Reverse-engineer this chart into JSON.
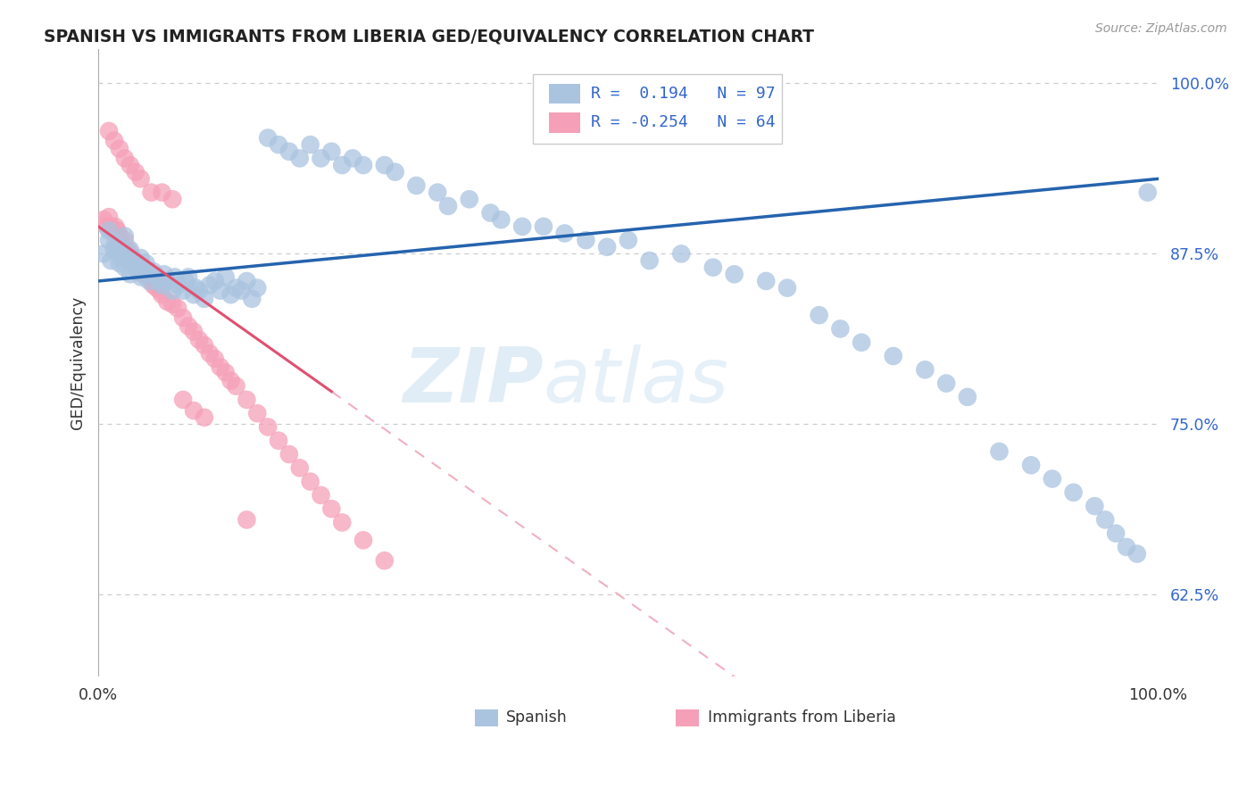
{
  "title": "SPANISH VS IMMIGRANTS FROM LIBERIA GED/EQUIVALENCY CORRELATION CHART",
  "source": "Source: ZipAtlas.com",
  "ylabel": "GED/Equivalency",
  "xlim": [
    0.0,
    1.0
  ],
  "ylim": [
    0.565,
    1.025
  ],
  "yticks": [
    0.625,
    0.75,
    0.875,
    1.0
  ],
  "ytick_labels": [
    "62.5%",
    "75.0%",
    "87.5%",
    "100.0%"
  ],
  "legend_r_blue": "0.194",
  "legend_n_blue": "97",
  "legend_r_pink": "-0.254",
  "legend_n_pink": "64",
  "blue_color": "#aac4e0",
  "pink_color": "#f5a0b8",
  "blue_line_color": "#2563ae",
  "pink_line_color": "#e05070",
  "pink_dash_color": "#f0b0c0",
  "tick_color": "#3366cc",
  "blue_regression": [
    0.855,
    0.075
  ],
  "pink_regression": [
    0.895,
    -0.55
  ],
  "blue_x": [
    0.005,
    0.01,
    0.01,
    0.012,
    0.015,
    0.016,
    0.018,
    0.02,
    0.02,
    0.022,
    0.025,
    0.025,
    0.028,
    0.03,
    0.03,
    0.032,
    0.035,
    0.038,
    0.04,
    0.04,
    0.042,
    0.045,
    0.048,
    0.05,
    0.052,
    0.055,
    0.058,
    0.06,
    0.062,
    0.065,
    0.07,
    0.072,
    0.075,
    0.08,
    0.082,
    0.085,
    0.09,
    0.092,
    0.095,
    0.1,
    0.105,
    0.11,
    0.115,
    0.12,
    0.125,
    0.13,
    0.135,
    0.14,
    0.145,
    0.15,
    0.16,
    0.17,
    0.18,
    0.19,
    0.2,
    0.21,
    0.22,
    0.23,
    0.24,
    0.25,
    0.27,
    0.28,
    0.3,
    0.32,
    0.33,
    0.35,
    0.37,
    0.38,
    0.4,
    0.42,
    0.44,
    0.46,
    0.48,
    0.5,
    0.52,
    0.55,
    0.58,
    0.6,
    0.63,
    0.65,
    0.68,
    0.7,
    0.72,
    0.75,
    0.78,
    0.8,
    0.82,
    0.85,
    0.88,
    0.9,
    0.92,
    0.94,
    0.95,
    0.96,
    0.97,
    0.98,
    0.99
  ],
  "blue_y": [
    0.875,
    0.885,
    0.892,
    0.87,
    0.878,
    0.882,
    0.876,
    0.868,
    0.88,
    0.872,
    0.865,
    0.888,
    0.875,
    0.86,
    0.878,
    0.868,
    0.87,
    0.862,
    0.858,
    0.872,
    0.865,
    0.868,
    0.855,
    0.86,
    0.862,
    0.858,
    0.855,
    0.852,
    0.86,
    0.855,
    0.848,
    0.858,
    0.852,
    0.848,
    0.855,
    0.858,
    0.845,
    0.85,
    0.848,
    0.842,
    0.852,
    0.855,
    0.848,
    0.858,
    0.845,
    0.85,
    0.848,
    0.855,
    0.842,
    0.85,
    0.96,
    0.955,
    0.95,
    0.945,
    0.955,
    0.945,
    0.95,
    0.94,
    0.945,
    0.94,
    0.94,
    0.935,
    0.925,
    0.92,
    0.91,
    0.915,
    0.905,
    0.9,
    0.895,
    0.895,
    0.89,
    0.885,
    0.88,
    0.885,
    0.87,
    0.875,
    0.865,
    0.86,
    0.855,
    0.85,
    0.83,
    0.82,
    0.81,
    0.8,
    0.79,
    0.78,
    0.77,
    0.73,
    0.72,
    0.71,
    0.7,
    0.69,
    0.68,
    0.67,
    0.66,
    0.655,
    0.92
  ],
  "pink_x": [
    0.005,
    0.008,
    0.01,
    0.012,
    0.015,
    0.016,
    0.018,
    0.02,
    0.022,
    0.025,
    0.028,
    0.03,
    0.032,
    0.035,
    0.038,
    0.04,
    0.042,
    0.045,
    0.048,
    0.05,
    0.052,
    0.055,
    0.058,
    0.06,
    0.065,
    0.07,
    0.075,
    0.08,
    0.085,
    0.09,
    0.095,
    0.1,
    0.105,
    0.11,
    0.115,
    0.12,
    0.125,
    0.13,
    0.14,
    0.15,
    0.16,
    0.17,
    0.18,
    0.19,
    0.2,
    0.21,
    0.22,
    0.23,
    0.25,
    0.27,
    0.01,
    0.015,
    0.02,
    0.025,
    0.03,
    0.035,
    0.04,
    0.05,
    0.06,
    0.07,
    0.08,
    0.09,
    0.1,
    0.14
  ],
  "pink_y": [
    0.9,
    0.895,
    0.902,
    0.895,
    0.89,
    0.895,
    0.892,
    0.888,
    0.882,
    0.885,
    0.878,
    0.875,
    0.872,
    0.87,
    0.868,
    0.862,
    0.86,
    0.862,
    0.858,
    0.855,
    0.852,
    0.85,
    0.848,
    0.845,
    0.84,
    0.838,
    0.835,
    0.828,
    0.822,
    0.818,
    0.812,
    0.808,
    0.802,
    0.798,
    0.792,
    0.788,
    0.782,
    0.778,
    0.768,
    0.758,
    0.748,
    0.738,
    0.728,
    0.718,
    0.708,
    0.698,
    0.688,
    0.678,
    0.665,
    0.65,
    0.965,
    0.958,
    0.952,
    0.945,
    0.94,
    0.935,
    0.93,
    0.92,
    0.92,
    0.915,
    0.768,
    0.76,
    0.755,
    0.68
  ]
}
